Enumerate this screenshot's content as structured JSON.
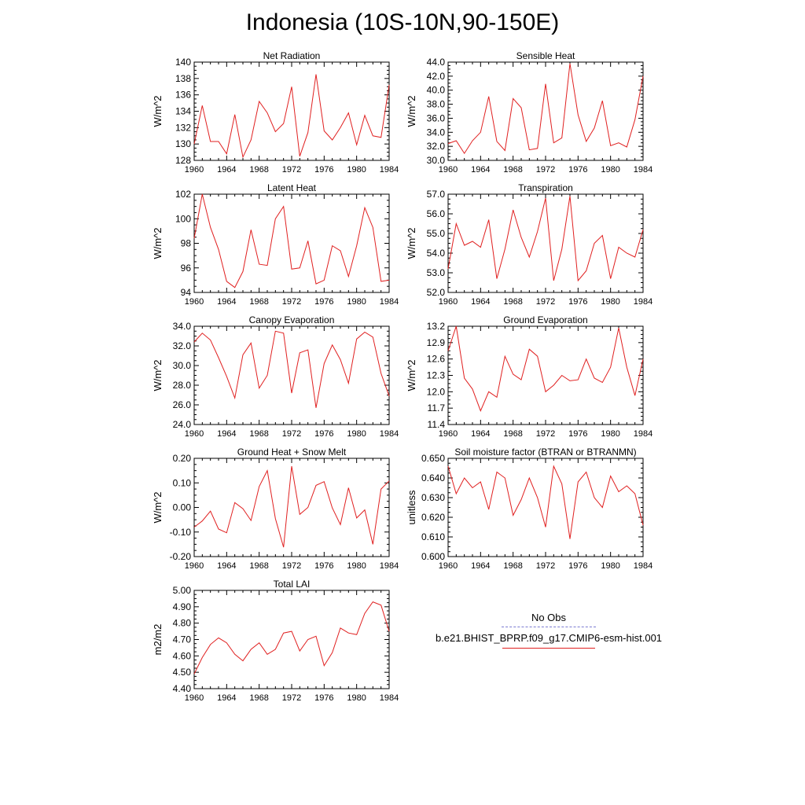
{
  "figure": {
    "title": "Indonesia (10S-10N,90-150E)"
  },
  "legend": {
    "obs_label": "No Obs",
    "model_label": "b.e21.BHIST_BPRP.f09_g17.CMIP6-esm-hist.001",
    "obs_color": "#7b7bd1",
    "model_color": "#e02020"
  },
  "chart_data": [
    {
      "type": "line",
      "title": "Net Radiation",
      "ylabel": "W/m^2",
      "xlabel": "",
      "xlim": [
        1960,
        1984
      ],
      "ylim": [
        128,
        140
      ],
      "x_ticks": [
        1960,
        1964,
        1968,
        1972,
        1976,
        1980,
        1984
      ],
      "y_ticks": [
        "128",
        "130",
        "132",
        "134",
        "136",
        "138",
        "140"
      ],
      "y_tick_values": [
        128,
        130,
        132,
        134,
        136,
        138,
        140
      ],
      "x": [
        1960,
        1961,
        1962,
        1963,
        1964,
        1965,
        1966,
        1967,
        1968,
        1969,
        1970,
        1971,
        1972,
        1973,
        1974,
        1975,
        1976,
        1977,
        1978,
        1979,
        1980,
        1981,
        1982,
        1983,
        1984
      ],
      "series": [
        {
          "name": "b.e21.BHIST_BPRP.f09_g17.CMIP6-esm-hist.001",
          "values": [
            130.0,
            134.7,
            130.3,
            130.3,
            128.8,
            133.6,
            128.4,
            130.5,
            135.2,
            133.8,
            131.5,
            132.5,
            137.0,
            128.5,
            131.4,
            138.5,
            131.6,
            130.5,
            132.0,
            133.8,
            129.9,
            133.5,
            131.0,
            130.8,
            137.2
          ]
        }
      ]
    },
    {
      "type": "line",
      "title": "Sensible Heat",
      "ylabel": "W/m^2",
      "xlabel": "",
      "xlim": [
        1960,
        1984
      ],
      "ylim": [
        30,
        44
      ],
      "x_ticks": [
        1960,
        1964,
        1968,
        1972,
        1976,
        1980,
        1984
      ],
      "y_ticks": [
        "30.0",
        "32.0",
        "34.0",
        "36.0",
        "38.0",
        "40.0",
        "42.0",
        "44.0"
      ],
      "y_tick_values": [
        30,
        32,
        34,
        36,
        38,
        40,
        42,
        44
      ],
      "x": [
        1960,
        1961,
        1962,
        1963,
        1964,
        1965,
        1966,
        1967,
        1968,
        1969,
        1970,
        1971,
        1972,
        1973,
        1974,
        1975,
        1976,
        1977,
        1978,
        1979,
        1980,
        1981,
        1982,
        1983,
        1984
      ],
      "series": [
        {
          "name": "b.e21.BHIST_BPRP.f09_g17.CMIP6-esm-hist.001",
          "values": [
            32.4,
            32.8,
            31.0,
            32.8,
            34.0,
            39.1,
            32.7,
            31.4,
            38.8,
            37.5,
            31.5,
            31.7,
            40.9,
            32.5,
            33.2,
            43.8,
            36.5,
            32.7,
            34.6,
            38.5,
            32.1,
            32.5,
            31.9,
            35.8,
            42.0
          ]
        }
      ]
    },
    {
      "type": "line",
      "title": "Latent Heat",
      "ylabel": "W/m^2",
      "xlabel": "",
      "xlim": [
        1960,
        1984
      ],
      "ylim": [
        94,
        102
      ],
      "x_ticks": [
        1960,
        1964,
        1968,
        1972,
        1976,
        1980,
        1984
      ],
      "y_ticks": [
        "94",
        "96",
        "98",
        "100",
        "102"
      ],
      "y_tick_values": [
        94,
        96,
        98,
        100,
        102
      ],
      "x": [
        1960,
        1961,
        1962,
        1963,
        1964,
        1965,
        1966,
        1967,
        1968,
        1969,
        1970,
        1971,
        1972,
        1973,
        1974,
        1975,
        1976,
        1977,
        1978,
        1979,
        1980,
        1981,
        1982,
        1983,
        1984
      ],
      "series": [
        {
          "name": "b.e21.BHIST_BPRP.f09_g17.CMIP6-esm-hist.001",
          "values": [
            98.4,
            102.0,
            99.3,
            97.5,
            94.9,
            94.4,
            95.7,
            99.1,
            96.3,
            96.2,
            100.0,
            101.0,
            95.9,
            96.0,
            98.2,
            94.7,
            95.0,
            97.8,
            97.4,
            95.3,
            97.8,
            100.9,
            99.3,
            94.9,
            95.0
          ]
        }
      ]
    },
    {
      "type": "line",
      "title": "Transpiration",
      "ylabel": "W/m^2",
      "xlabel": "",
      "xlim": [
        1960,
        1984
      ],
      "ylim": [
        52,
        57
      ],
      "x_ticks": [
        1960,
        1964,
        1968,
        1972,
        1976,
        1980,
        1984
      ],
      "y_ticks": [
        "52.0",
        "53.0",
        "54.0",
        "55.0",
        "56.0",
        "57.0"
      ],
      "y_tick_values": [
        52,
        53,
        54,
        55,
        56,
        57
      ],
      "x": [
        1960,
        1961,
        1962,
        1963,
        1964,
        1965,
        1966,
        1967,
        1968,
        1969,
        1970,
        1971,
        1972,
        1973,
        1974,
        1975,
        1976,
        1977,
        1978,
        1979,
        1980,
        1981,
        1982,
        1983,
        1984
      ],
      "series": [
        {
          "name": "b.e21.BHIST_BPRP.f09_g17.CMIP6-esm-hist.001",
          "values": [
            53.2,
            55.5,
            54.4,
            54.6,
            54.3,
            55.7,
            52.7,
            54.2,
            56.2,
            54.8,
            53.8,
            55.1,
            56.8,
            52.6,
            54.2,
            56.9,
            52.6,
            53.1,
            54.5,
            54.9,
            52.7,
            54.3,
            54.0,
            53.8,
            55.2
          ]
        }
      ]
    },
    {
      "type": "line",
      "title": "Canopy Evaporation",
      "ylabel": "W/m^2",
      "xlabel": "",
      "xlim": [
        1960,
        1984
      ],
      "ylim": [
        24,
        34
      ],
      "x_ticks": [
        1960,
        1964,
        1968,
        1972,
        1976,
        1980,
        1984
      ],
      "y_ticks": [
        "24.0",
        "26.0",
        "28.0",
        "30.0",
        "32.0",
        "34.0"
      ],
      "y_tick_values": [
        24,
        26,
        28,
        30,
        32,
        34
      ],
      "x": [
        1960,
        1961,
        1962,
        1963,
        1964,
        1965,
        1966,
        1967,
        1968,
        1969,
        1970,
        1971,
        1972,
        1973,
        1974,
        1975,
        1976,
        1977,
        1978,
        1979,
        1980,
        1981,
        1982,
        1983,
        1984
      ],
      "series": [
        {
          "name": "b.e21.BHIST_BPRP.f09_g17.CMIP6-esm-hist.001",
          "values": [
            32.4,
            33.3,
            32.6,
            30.8,
            28.9,
            26.7,
            31.1,
            32.3,
            27.7,
            29.0,
            33.5,
            33.3,
            27.2,
            31.3,
            31.6,
            25.7,
            30.2,
            32.1,
            30.6,
            28.2,
            32.7,
            33.4,
            32.9,
            29.2,
            26.9
          ]
        }
      ]
    },
    {
      "type": "line",
      "title": "Ground Evaporation",
      "ylabel": "W/m^2",
      "xlabel": "",
      "xlim": [
        1960,
        1984
      ],
      "ylim": [
        11.4,
        13.2
      ],
      "x_ticks": [
        1960,
        1964,
        1968,
        1972,
        1976,
        1980,
        1984
      ],
      "y_ticks": [
        "11.4",
        "11.7",
        "12.0",
        "12.3",
        "12.6",
        "12.9",
        "13.2"
      ],
      "y_tick_values": [
        11.4,
        11.7,
        12.0,
        12.3,
        12.6,
        12.9,
        13.2
      ],
      "x": [
        1960,
        1961,
        1962,
        1963,
        1964,
        1965,
        1966,
        1967,
        1968,
        1969,
        1970,
        1971,
        1972,
        1973,
        1974,
        1975,
        1976,
        1977,
        1978,
        1979,
        1980,
        1981,
        1982,
        1983,
        1984
      ],
      "series": [
        {
          "name": "b.e21.BHIST_BPRP.f09_g17.CMIP6-esm-hist.001",
          "values": [
            12.75,
            13.2,
            12.25,
            12.05,
            11.65,
            12.0,
            11.9,
            12.65,
            12.32,
            12.22,
            12.78,
            12.65,
            12.0,
            12.12,
            12.3,
            12.2,
            12.22,
            12.6,
            12.25,
            12.17,
            12.45,
            13.17,
            12.45,
            11.93,
            12.6
          ]
        }
      ]
    },
    {
      "type": "line",
      "title": "Ground Heat + Snow Melt",
      "ylabel": "W/m^2",
      "xlabel": "",
      "xlim": [
        1960,
        1984
      ],
      "ylim": [
        -0.2,
        0.2
      ],
      "x_ticks": [
        1960,
        1964,
        1968,
        1972,
        1976,
        1980,
        1984
      ],
      "y_ticks": [
        "-0.20",
        "-0.10",
        "0.00",
        "0.10",
        "0.20"
      ],
      "y_tick_values": [
        -0.2,
        -0.1,
        0.0,
        0.1,
        0.2
      ],
      "x": [
        1960,
        1961,
        1962,
        1963,
        1964,
        1965,
        1966,
        1967,
        1968,
        1969,
        1970,
        1971,
        1972,
        1973,
        1974,
        1975,
        1976,
        1977,
        1978,
        1979,
        1980,
        1981,
        1982,
        1983,
        1984
      ],
      "series": [
        {
          "name": "b.e21.BHIST_BPRP.f09_g17.CMIP6-esm-hist.001",
          "values": [
            -0.08,
            -0.055,
            -0.015,
            -0.088,
            -0.103,
            0.02,
            -0.005,
            -0.053,
            0.085,
            0.15,
            -0.045,
            -0.162,
            0.168,
            -0.028,
            0.0,
            0.09,
            0.105,
            -0.002,
            -0.07,
            0.08,
            -0.043,
            -0.01,
            -0.15,
            0.075,
            0.108
          ]
        }
      ]
    },
    {
      "type": "line",
      "title": "Soil moisture factor (BTRAN or BTRANMN)",
      "ylabel": "unitless",
      "xlabel": "",
      "xlim": [
        1960,
        1984
      ],
      "ylim": [
        0.6,
        0.65
      ],
      "x_ticks": [
        1960,
        1964,
        1968,
        1972,
        1976,
        1980,
        1984
      ],
      "y_ticks": [
        "0.600",
        "0.610",
        "0.620",
        "0.630",
        "0.640",
        "0.650"
      ],
      "y_tick_values": [
        0.6,
        0.61,
        0.62,
        0.63,
        0.64,
        0.65
      ],
      "x": [
        1960,
        1961,
        1962,
        1963,
        1964,
        1965,
        1966,
        1967,
        1968,
        1969,
        1970,
        1971,
        1972,
        1973,
        1974,
        1975,
        1976,
        1977,
        1978,
        1979,
        1980,
        1981,
        1982,
        1983,
        1984
      ],
      "series": [
        {
          "name": "b.e21.BHIST_BPRP.f09_g17.CMIP6-esm-hist.001",
          "values": [
            0.646,
            0.632,
            0.64,
            0.635,
            0.638,
            0.624,
            0.643,
            0.64,
            0.621,
            0.629,
            0.64,
            0.63,
            0.615,
            0.646,
            0.637,
            0.609,
            0.638,
            0.643,
            0.63,
            0.625,
            0.641,
            0.633,
            0.636,
            0.632,
            0.616
          ]
        }
      ]
    },
    {
      "type": "line",
      "title": "Total LAI",
      "ylabel": "m2/m2",
      "xlabel": "",
      "xlim": [
        1960,
        1984
      ],
      "ylim": [
        4.4,
        5.0
      ],
      "x_ticks": [
        1960,
        1964,
        1968,
        1972,
        1976,
        1980,
        1984
      ],
      "y_ticks": [
        "4.40",
        "4.50",
        "4.60",
        "4.70",
        "4.80",
        "4.90",
        "5.00"
      ],
      "y_tick_values": [
        4.4,
        4.5,
        4.6,
        4.7,
        4.8,
        4.9,
        5.0
      ],
      "x": [
        1960,
        1961,
        1962,
        1963,
        1964,
        1965,
        1966,
        1967,
        1968,
        1969,
        1970,
        1971,
        1972,
        1973,
        1974,
        1975,
        1976,
        1977,
        1978,
        1979,
        1980,
        1981,
        1982,
        1983,
        1984
      ],
      "series": [
        {
          "name": "b.e21.BHIST_BPRP.f09_g17.CMIP6-esm-hist.001",
          "values": [
            4.49,
            4.59,
            4.67,
            4.71,
            4.68,
            4.61,
            4.57,
            4.64,
            4.68,
            4.61,
            4.64,
            4.74,
            4.75,
            4.63,
            4.7,
            4.72,
            4.54,
            4.62,
            4.77,
            4.74,
            4.73,
            4.86,
            4.93,
            4.91,
            4.75
          ]
        }
      ]
    }
  ]
}
